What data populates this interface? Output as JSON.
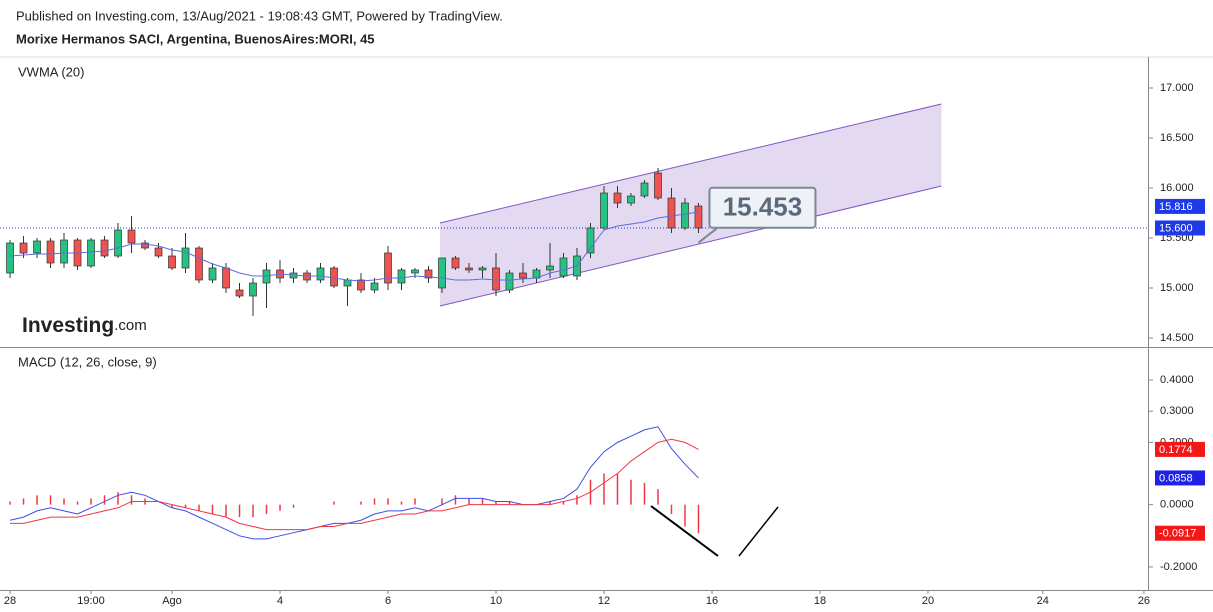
{
  "header": {
    "published": "Published on Investing.com, 13/Aug/2021 - 19:08:43 GMT, Powered by TradingView.",
    "symbol": "Morixe Hermanos SACI, Argentina, BuenosAires:MORI, 45"
  },
  "logo": {
    "brand": "Investing",
    "suffix": ".com"
  },
  "chart_data": [
    {
      "type": "candlestick",
      "title": "VWMA (20)",
      "x": [
        0,
        1,
        2,
        3,
        4,
        5,
        6,
        7,
        8,
        9,
        10,
        11,
        12,
        13,
        14,
        15,
        16,
        17,
        18,
        19,
        20,
        21,
        22,
        23,
        24,
        25,
        26,
        27,
        28,
        29,
        30,
        31,
        32,
        33,
        34,
        35,
        36,
        37,
        38,
        39,
        40,
        41,
        42,
        43,
        44,
        45,
        46,
        47,
        48,
        49,
        50,
        51
      ],
      "open": [
        15.15,
        15.45,
        15.35,
        15.47,
        15.25,
        15.48,
        15.22,
        15.48,
        15.32,
        15.58,
        15.45,
        15.4,
        15.32,
        15.2,
        15.4,
        15.08,
        15.2,
        14.98,
        14.92,
        15.05,
        15.18,
        15.1,
        15.15,
        15.08,
        15.2,
        15.02,
        15.08,
        14.98,
        15.35,
        15.05,
        15.15,
        15.18,
        15.0,
        15.3,
        15.2,
        15.18,
        15.2,
        14.98,
        15.15,
        15.1,
        15.18,
        15.12,
        15.12,
        15.35,
        15.6,
        15.95,
        15.85,
        15.92,
        16.15,
        15.9,
        15.6,
        15.82
      ],
      "high": [
        15.48,
        15.52,
        15.5,
        15.5,
        15.55,
        15.5,
        15.5,
        15.52,
        15.65,
        15.72,
        15.48,
        15.45,
        15.4,
        15.55,
        15.42,
        15.25,
        15.25,
        15.05,
        15.1,
        15.25,
        15.28,
        15.2,
        15.18,
        15.25,
        15.22,
        15.1,
        15.15,
        15.1,
        15.42,
        15.2,
        15.2,
        15.22,
        15.3,
        15.32,
        15.25,
        15.22,
        15.35,
        15.18,
        15.25,
        15.2,
        15.45,
        15.35,
        15.4,
        15.65,
        16.02,
        16.02,
        15.95,
        16.08,
        16.2,
        16.0,
        15.9,
        15.85
      ],
      "low": [
        15.1,
        15.3,
        15.3,
        15.2,
        15.2,
        15.18,
        15.2,
        15.3,
        15.3,
        15.35,
        15.38,
        15.3,
        15.18,
        15.15,
        15.05,
        15.05,
        14.95,
        14.9,
        14.72,
        14.8,
        15.05,
        15.05,
        15.05,
        15.05,
        15.0,
        14.82,
        14.95,
        14.95,
        14.98,
        14.98,
        15.1,
        15.05,
        14.95,
        15.18,
        15.15,
        15.1,
        14.92,
        14.95,
        15.05,
        15.05,
        15.1,
        15.1,
        15.08,
        15.3,
        15.58,
        15.8,
        15.82,
        15.9,
        15.88,
        15.55,
        15.58,
        15.55
      ],
      "close": [
        15.45,
        15.35,
        15.47,
        15.25,
        15.48,
        15.22,
        15.48,
        15.32,
        15.58,
        15.45,
        15.4,
        15.32,
        15.2,
        15.4,
        15.08,
        15.2,
        15.0,
        14.92,
        15.05,
        15.18,
        15.1,
        15.15,
        15.08,
        15.2,
        15.02,
        15.08,
        14.98,
        15.05,
        15.05,
        15.18,
        15.18,
        15.1,
        15.3,
        15.2,
        15.18,
        15.2,
        14.98,
        15.15,
        15.1,
        15.18,
        15.22,
        15.3,
        15.32,
        15.6,
        15.95,
        15.85,
        15.92,
        16.05,
        15.9,
        15.6,
        15.85,
        15.6
      ],
      "up_color": "#26c281",
      "down_color": "#ef5350",
      "vwma": {
        "color": "#5b6ee1",
        "values": [
          15.32,
          15.33,
          15.34,
          15.34,
          15.35,
          15.35,
          15.36,
          15.37,
          15.4,
          15.44,
          15.44,
          15.42,
          15.38,
          15.36,
          15.3,
          15.24,
          15.2,
          15.15,
          15.12,
          15.12,
          15.14,
          15.13,
          15.12,
          15.12,
          15.1,
          15.08,
          15.07,
          15.08,
          15.1,
          15.1,
          15.12,
          15.11,
          15.1,
          15.08,
          15.08,
          15.09,
          15.08,
          15.08,
          15.09,
          15.1,
          15.15,
          15.18,
          15.22,
          15.4,
          15.58,
          15.62,
          15.64,
          15.66,
          15.7,
          15.72,
          15.74,
          15.76
        ]
      },
      "channel": {
        "color": "#7e57c2",
        "x": [
          31.85,
          69
        ],
        "upper": [
          15.65,
          16.84
        ],
        "lower": [
          14.82,
          16.02
        ]
      },
      "ylim": [
        14.41,
        17.31
      ],
      "yticks": [
        {
          "value": 14.5,
          "label": "14.500"
        },
        {
          "value": 15,
          "label": "15.000"
        },
        {
          "value": 15.5,
          "label": "15.500"
        },
        {
          "value": 16,
          "label": "16.000"
        },
        {
          "value": 16.5,
          "label": "16.500"
        },
        {
          "value": 17,
          "label": "17.000"
        }
      ],
      "last_labels": [
        {
          "value": 15.816,
          "label": "15.816",
          "color": "#1e3ae6"
        },
        {
          "value": 15.6,
          "label": "15.600",
          "color": "#1e3ae6"
        }
      ],
      "annotation": {
        "value": 15.453,
        "label": "15.453",
        "x": 51
      }
    },
    {
      "type": "macd",
      "title": "MACD (12, 26, close, 9)",
      "x": [
        0,
        1,
        2,
        3,
        4,
        5,
        6,
        7,
        8,
        9,
        10,
        11,
        12,
        13,
        14,
        15,
        16,
        17,
        18,
        19,
        20,
        21,
        22,
        23,
        24,
        25,
        26,
        27,
        28,
        29,
        30,
        31,
        32,
        33,
        34,
        35,
        36,
        37,
        38,
        39,
        40,
        41,
        42,
        43,
        44,
        45,
        46,
        47,
        48,
        49,
        50,
        51
      ],
      "xlim": [
        -0.15,
        84.3
      ],
      "xticks": [
        {
          "value": 0,
          "label": "28"
        },
        {
          "value": 6,
          "label": "19:00"
        },
        {
          "value": 12,
          "label": "Ago"
        },
        {
          "value": 20,
          "label": "4"
        },
        {
          "value": 28,
          "label": "6"
        },
        {
          "value": 36,
          "label": "10"
        },
        {
          "value": 44,
          "label": "12"
        },
        {
          "value": 52,
          "label": "16"
        },
        {
          "value": 60,
          "label": "18"
        },
        {
          "value": 68,
          "label": "20"
        },
        {
          "value": 76.5,
          "label": "24"
        },
        {
          "value": 84,
          "label": "26"
        }
      ],
      "ylim": [
        -0.274,
        0.503
      ],
      "yticks": [
        {
          "value": 0.4,
          "label": "0.4000"
        },
        {
          "value": 0.3,
          "label": "0.3000"
        },
        {
          "value": 0.2,
          "label": "0.2000"
        },
        {
          "value": 0,
          "label": "0.0000"
        },
        {
          "value": -0.2,
          "label": "-0.2000"
        }
      ],
      "series": [
        {
          "color": "#3d4de6",
          "values": [
            -0.05,
            -0.04,
            -0.02,
            -0.01,
            -0.02,
            -0.03,
            -0.01,
            0.01,
            0.03,
            0.04,
            0.03,
            0.01,
            -0.01,
            -0.02,
            -0.04,
            -0.06,
            -0.08,
            -0.1,
            -0.11,
            -0.11,
            -0.1,
            -0.09,
            -0.08,
            -0.07,
            -0.06,
            -0.06,
            -0.05,
            -0.03,
            -0.02,
            -0.02,
            -0.01,
            -0.02,
            0.0,
            0.02,
            0.02,
            0.02,
            0.01,
            0.01,
            0.0,
            0.0,
            0.01,
            0.02,
            0.05,
            0.12,
            0.17,
            0.2,
            0.22,
            0.24,
            0.25,
            0.18,
            0.13,
            0.0858
          ]
        },
        {
          "color": "#f23645",
          "values": [
            -0.06,
            -0.06,
            -0.05,
            -0.04,
            -0.04,
            -0.04,
            -0.03,
            -0.02,
            -0.01,
            0.01,
            0.01,
            0.01,
            0.0,
            -0.01,
            -0.02,
            -0.03,
            -0.04,
            -0.06,
            -0.07,
            -0.08,
            -0.08,
            -0.08,
            -0.08,
            -0.07,
            -0.07,
            -0.06,
            -0.06,
            -0.05,
            -0.04,
            -0.03,
            -0.03,
            -0.02,
            -0.02,
            -0.01,
            0.0,
            0.0,
            0.0,
            0.0,
            0.0,
            0.0,
            0.0,
            0.01,
            0.02,
            0.04,
            0.07,
            0.1,
            0.14,
            0.17,
            0.2,
            0.21,
            0.2,
            0.1774
          ]
        }
      ],
      "histogram": {
        "color": "#f23645",
        "values": [
          0.01,
          0.02,
          0.03,
          0.03,
          0.02,
          0.01,
          0.02,
          0.03,
          0.04,
          0.03,
          0.02,
          0.0,
          -0.01,
          -0.01,
          -0.02,
          -0.03,
          -0.04,
          -0.04,
          -0.04,
          -0.03,
          -0.02,
          -0.01,
          0.0,
          0.0,
          0.01,
          0.0,
          0.01,
          0.02,
          0.02,
          0.01,
          0.02,
          0.0,
          0.02,
          0.03,
          0.02,
          0.02,
          0.01,
          0.01,
          0.0,
          0.0,
          0.01,
          0.01,
          0.03,
          0.08,
          0.1,
          0.1,
          0.08,
          0.07,
          0.05,
          -0.03,
          -0.07,
          -0.0917
        ]
      },
      "last_labels": [
        {
          "value": 0.1774,
          "label": "0.1774",
          "color": "#f21818"
        },
        {
          "value": 0.0858,
          "label": "0.0858",
          "color": "#1e22e6"
        },
        {
          "value": -0.0917,
          "label": "-0.0917",
          "color": "#f21818"
        }
      ]
    }
  ]
}
